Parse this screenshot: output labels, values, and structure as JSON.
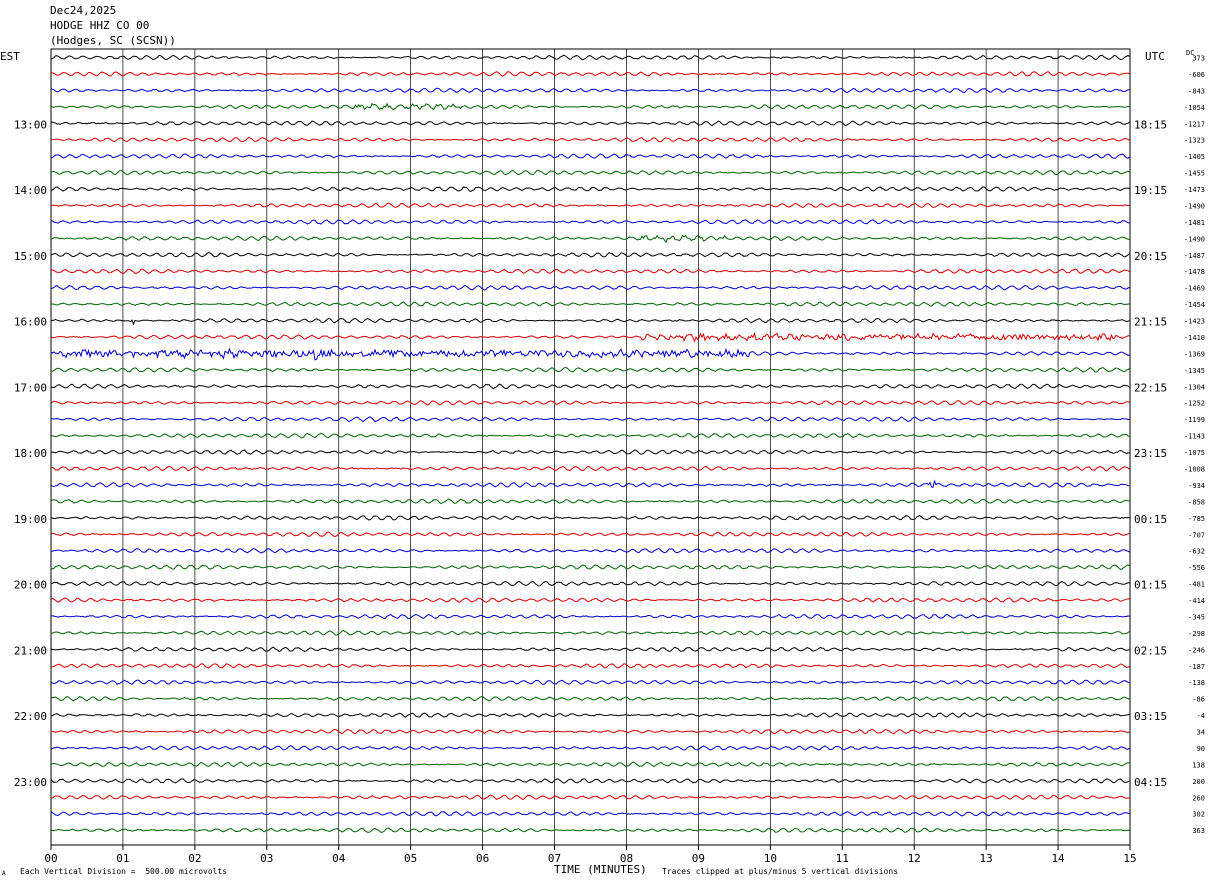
{
  "header": {
    "date": "Dec24,2025",
    "station": "HODGE HHZ CO 00",
    "location": "(Hodges, SC (SCSN))"
  },
  "left_timezone": "EST",
  "right_timezone": "UTC",
  "dc_label": "DC",
  "footer": {
    "scale_note": "Each Vertical Division =  500.00 microvolts",
    "clip_note": "Traces clipped at plus/minus 5 vertical divisions",
    "corner_mark": "A"
  },
  "colors": {
    "trace_cycle": [
      "#000000",
      "#d40000",
      "#0000c8",
      "#006400"
    ],
    "grid": "#000000",
    "background": "#ffffff"
  },
  "chart_data": {
    "type": "line",
    "subtype": "helicorder",
    "xlabel": "TIME (MINUTES)",
    "xlim": [
      0,
      15
    ],
    "x_ticks": [
      "00",
      "01",
      "02",
      "03",
      "04",
      "05",
      "06",
      "07",
      "08",
      "09",
      "10",
      "11",
      "12",
      "13",
      "14",
      "15"
    ],
    "left_hour_labels": [
      "13:00",
      "14:00",
      "15:00",
      "16:00",
      "17:00",
      "18:00",
      "19:00",
      "20:00",
      "21:00",
      "22:00",
      "23:00"
    ],
    "right_hour_labels": [
      "18:15",
      "19:15",
      "20:15",
      "21:15",
      "22:15",
      "23:15",
      "00:15",
      "01:15",
      "02:15",
      "03:15",
      "04:15"
    ],
    "trace_count": 48,
    "dc_offsets": [
      "373",
      "-606",
      "-843",
      "-1054",
      "-1217",
      "-1323",
      "-1405",
      "-1455",
      "-1473",
      "-1490",
      "-1481",
      "-1490",
      "-1487",
      "-1478",
      "-1469",
      "-1454",
      "-1423",
      "-1410",
      "-1369",
      "-1345",
      "-1304",
      "-1252",
      "-1199",
      "-1143",
      "-1075",
      "-1008",
      "-934",
      "-858",
      "-785",
      "-707",
      "-632",
      "-556",
      "-481",
      "-414",
      "-345",
      "-298",
      "-246",
      "-187",
      "-138",
      "-86",
      "-4",
      "34",
      "90",
      "138",
      "200",
      "260",
      "302",
      "363"
    ],
    "events": [
      {
        "trace": 3,
        "start_min": 4.2,
        "end_min": 5.7,
        "amp": 3.5
      },
      {
        "trace": 11,
        "start_min": 8.2,
        "end_min": 9.4,
        "amp": 3
      },
      {
        "trace": 16,
        "start_min": 1.1,
        "end_min": 1.15,
        "amp": 8
      },
      {
        "trace": 17,
        "start_min": 8.2,
        "end_min": 14.8,
        "amp": 5
      },
      {
        "trace": 18,
        "start_min": 0,
        "end_min": 9.7,
        "amp": 6
      },
      {
        "trace": 18,
        "start_min": 3.6,
        "end_min": 3.7,
        "amp": 12
      },
      {
        "trace": 18,
        "start_min": 1.8,
        "end_min": 1.9,
        "amp": 9
      },
      {
        "trace": 26,
        "start_min": 12.2,
        "end_min": 12.3,
        "amp": 9
      }
    ]
  }
}
